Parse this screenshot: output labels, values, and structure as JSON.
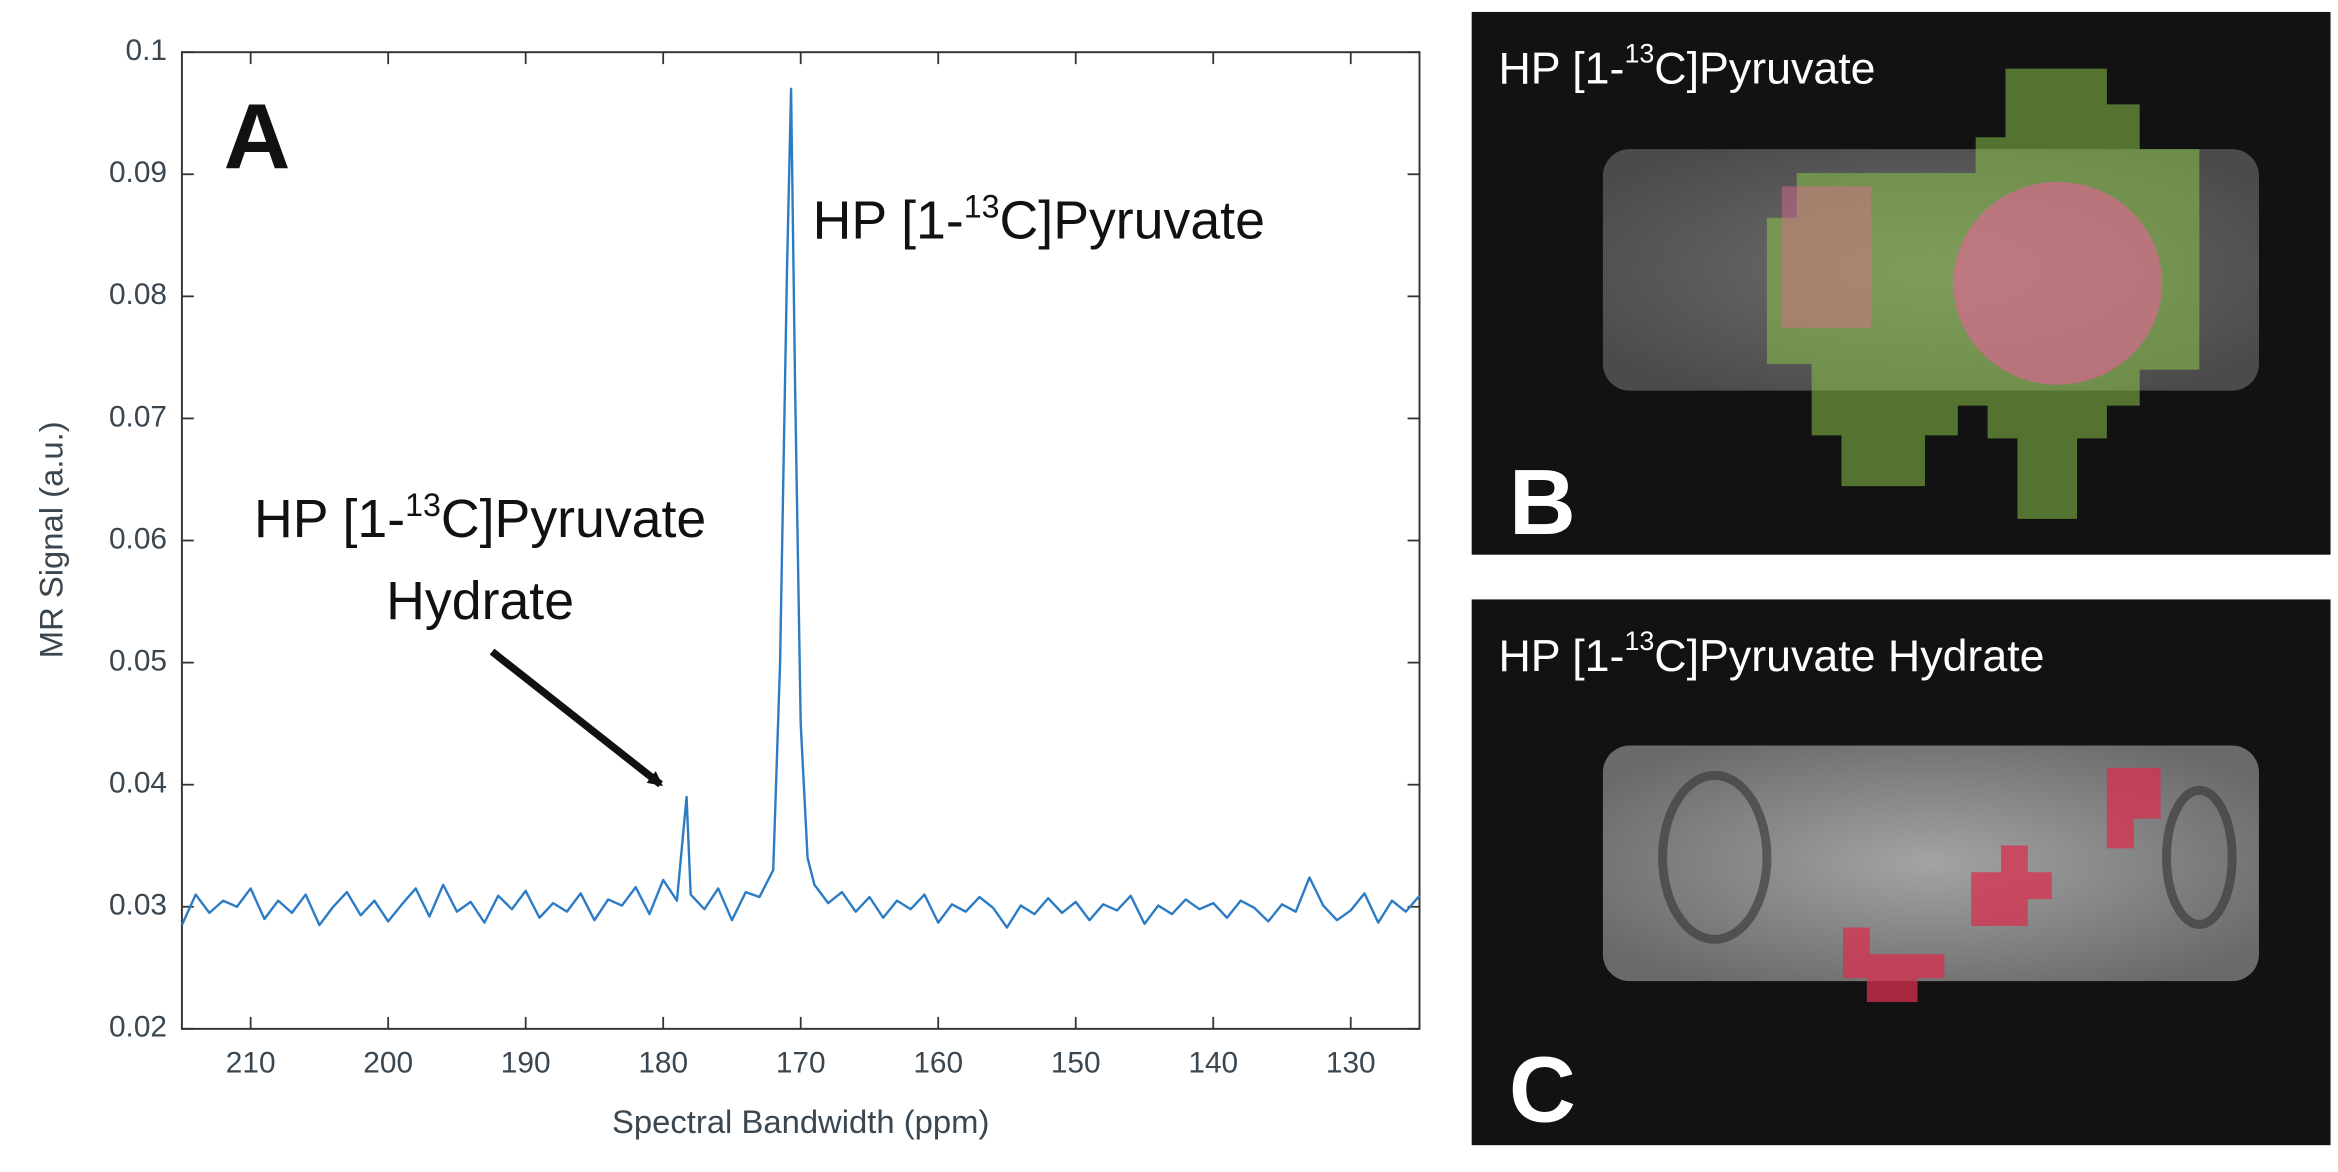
{
  "chart_data": {
    "type": "line",
    "panel_label": "A",
    "xlabel": "Spectral Bandwidth (ppm)",
    "ylabel": "MR Signal (a.u.)",
    "xlim": [
      215,
      125
    ],
    "ylim": [
      0.02,
      0.1
    ],
    "xticks": [
      210,
      200,
      190,
      180,
      170,
      160,
      150,
      140,
      130
    ],
    "yticks": [
      0.02,
      0.03,
      0.04,
      0.05,
      0.06,
      0.07,
      0.08,
      0.09,
      0.1
    ],
    "grid": false,
    "color": "#2b7cc4",
    "x": [
      215,
      214,
      213,
      212,
      211,
      210,
      209,
      208,
      207,
      206,
      205,
      204,
      203,
      202,
      201,
      200,
      199,
      198,
      197,
      196,
      195,
      194,
      193,
      192,
      191,
      190,
      189,
      188,
      187,
      186,
      185,
      184,
      183,
      182,
      181,
      180,
      179,
      178.3,
      178,
      177,
      176,
      175,
      174,
      173,
      172,
      171.5,
      171,
      170.7,
      170.4,
      170,
      169.5,
      169,
      168,
      167,
      166,
      165,
      164,
      163,
      162,
      161,
      160,
      159,
      158,
      157,
      156,
      155,
      154,
      153,
      152,
      151,
      150,
      149,
      148,
      147,
      146,
      145,
      144,
      143,
      142,
      141,
      140,
      139,
      138,
      137,
      136,
      135,
      134,
      133,
      132,
      131,
      130,
      129,
      128,
      127,
      126,
      125
    ],
    "values": [
      0.0285,
      0.031,
      0.0295,
      0.0305,
      0.03,
      0.0315,
      0.029,
      0.0305,
      0.0295,
      0.031,
      0.0285,
      0.03,
      0.0312,
      0.0293,
      0.0305,
      0.0288,
      0.0302,
      0.0315,
      0.0292,
      0.0318,
      0.0296,
      0.0304,
      0.0287,
      0.0309,
      0.0298,
      0.0313,
      0.0291,
      0.0303,
      0.0296,
      0.0311,
      0.0289,
      0.0306,
      0.0301,
      0.0316,
      0.0294,
      0.0322,
      0.0305,
      0.039,
      0.031,
      0.0298,
      0.0315,
      0.0289,
      0.0312,
      0.0308,
      0.033,
      0.05,
      0.082,
      0.097,
      0.072,
      0.045,
      0.034,
      0.0318,
      0.0303,
      0.0312,
      0.0296,
      0.0308,
      0.0291,
      0.0305,
      0.0298,
      0.031,
      0.0287,
      0.0302,
      0.0296,
      0.0308,
      0.0299,
      0.0283,
      0.0301,
      0.0294,
      0.0307,
      0.0295,
      0.0304,
      0.0289,
      0.0302,
      0.0297,
      0.0309,
      0.0286,
      0.0301,
      0.0294,
      0.0306,
      0.0298,
      0.0303,
      0.0291,
      0.0305,
      0.0299,
      0.0288,
      0.0302,
      0.0296,
      0.0324,
      0.0301,
      0.0289,
      0.0297,
      0.0311,
      0.0287,
      0.0305,
      0.0296,
      0.0309
    ],
    "annotations": [
      {
        "lines": [
          [
            {
              "text": "HP [1-"
            },
            {
              "text": "13",
              "sup": true
            },
            {
              "text": "C]Pyruvate"
            }
          ]
        ]
      },
      {
        "lines": [
          [
            {
              "text": "HP [1-"
            },
            {
              "text": "13",
              "sup": true
            },
            {
              "text": "C]Pyruvate"
            }
          ],
          [
            {
              "text": "Hydrate"
            }
          ]
        ]
      }
    ]
  },
  "panels": [
    {
      "letter": "B",
      "caption": [
        {
          "text": "HP [1-"
        },
        {
          "text": "13",
          "sup": true
        },
        {
          "text": "C]Pyruvate"
        }
      ]
    },
    {
      "letter": "C",
      "caption": [
        {
          "text": "HP [1-"
        },
        {
          "text": "13",
          "sup": true
        },
        {
          "text": "C]Pyruvate Hydrate"
        }
      ]
    }
  ]
}
